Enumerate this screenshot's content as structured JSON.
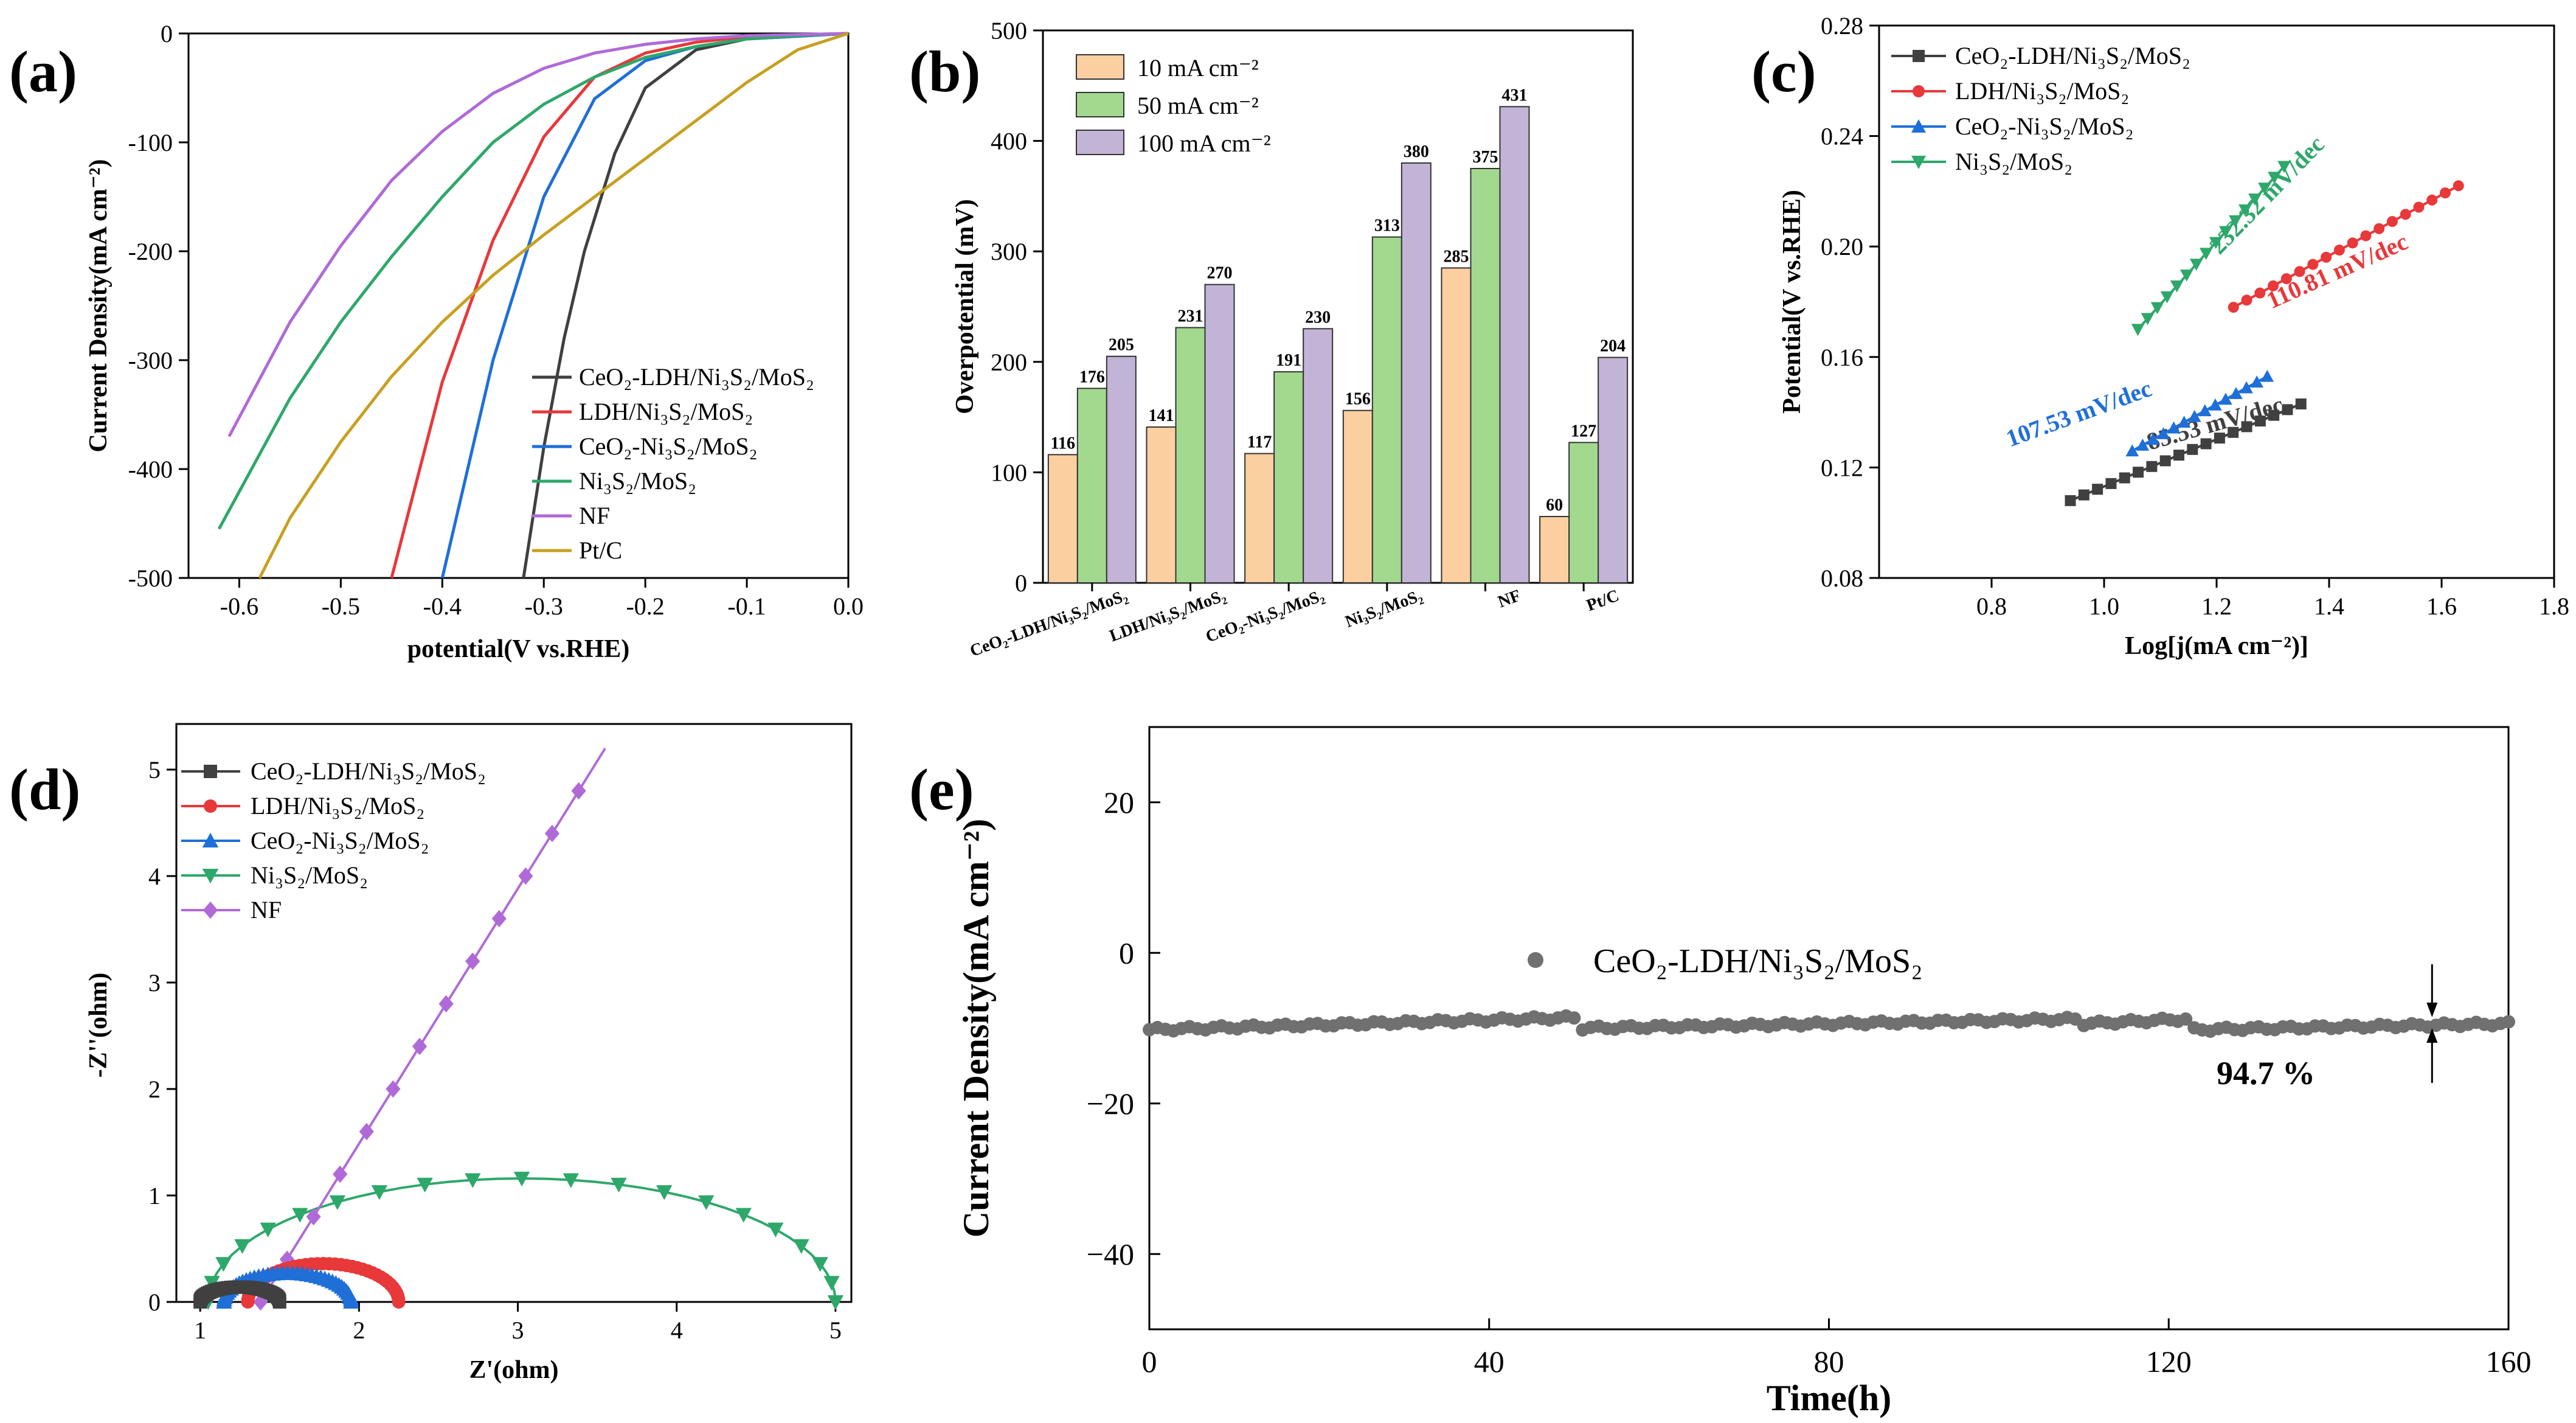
{
  "panels": [
    "(a)",
    "(b)",
    "(c)",
    "(d)",
    "(e)"
  ],
  "colors": {
    "dark": "#404040",
    "red": "#e8383a",
    "blue": "#1f6fd8",
    "green": "#2ea86a",
    "purple": "#b06ad8",
    "gold": "#c8a020",
    "bar10": "#fbcf9f",
    "bar50": "#a3d98f",
    "bar100": "#c2b4d6"
  },
  "chart_data": [
    {
      "id": "a",
      "type": "line",
      "title": "",
      "xlabel": "potential(V vs.RHE)",
      "ylabel": "Current Density(mA cm⁻²)",
      "xlim": [
        -0.65,
        0.0
      ],
      "ylim": [
        -500,
        0
      ],
      "xticks": [
        "-0.6",
        "-0.5",
        "-0.4",
        "-0.3",
        "-0.2",
        "-0.1",
        "0.0"
      ],
      "yticks": [
        "0",
        "-100",
        "-200",
        "-300",
        "-400",
        "-500"
      ],
      "legend": "bottom-right",
      "series": [
        {
          "name": "CeO₂-LDH/Ni₃S₂/MoS₂",
          "color": "#404040",
          "x": [
            0,
            -0.1,
            -0.15,
            -0.2,
            -0.23,
            -0.26,
            -0.28,
            -0.3,
            -0.31,
            -0.32
          ],
          "y": [
            0,
            -5,
            -15,
            -50,
            -110,
            -200,
            -280,
            -380,
            -440,
            -500
          ]
        },
        {
          "name": "LDH/Ni₃S₂/MoS₂",
          "color": "#e8383a",
          "x": [
            0,
            -0.1,
            -0.15,
            -0.2,
            -0.25,
            -0.3,
            -0.35,
            -0.4,
            -0.45
          ],
          "y": [
            0,
            -3,
            -8,
            -18,
            -40,
            -95,
            -190,
            -320,
            -500
          ]
        },
        {
          "name": "CeO₂-Ni₃S₂/MoS₂",
          "color": "#1f6fd8",
          "x": [
            0,
            -0.1,
            -0.15,
            -0.2,
            -0.25,
            -0.3,
            -0.35,
            -0.4
          ],
          "y": [
            0,
            -5,
            -12,
            -25,
            -60,
            -150,
            -300,
            -500
          ]
        },
        {
          "name": "Ni₃S₂/MoS₂",
          "color": "#2ea86a",
          "x": [
            0,
            -0.05,
            -0.1,
            -0.15,
            -0.2,
            -0.25,
            -0.3,
            -0.35,
            -0.4,
            -0.45,
            -0.5,
            -0.55,
            -0.62
          ],
          "y": [
            0,
            -2,
            -5,
            -12,
            -22,
            -40,
            -65,
            -100,
            -150,
            -205,
            -265,
            -335,
            -455
          ]
        },
        {
          "name": "NF",
          "color": "#b06ad8",
          "x": [
            0,
            -0.1,
            -0.15,
            -0.2,
            -0.25,
            -0.3,
            -0.35,
            -0.4,
            -0.45,
            -0.5,
            -0.55,
            -0.61
          ],
          "y": [
            0,
            -2,
            -5,
            -10,
            -18,
            -32,
            -55,
            -90,
            -135,
            -195,
            -265,
            -370
          ]
        },
        {
          "name": "NF",
          "color": "#b06ad8",
          "x": [],
          "y": []
        },
        {
          "name": "Pt/C",
          "color": "#c8a020",
          "x": [
            0,
            -0.05,
            -0.1,
            -0.15,
            -0.2,
            -0.25,
            -0.3,
            -0.35,
            -0.4,
            -0.45,
            -0.5,
            -0.55,
            -0.58
          ],
          "y": [
            0,
            -15,
            -45,
            -80,
            -115,
            -150,
            -185,
            -222,
            -265,
            -315,
            -375,
            -445,
            -500
          ]
        }
      ],
      "legend_entries": [
        "CeO₂-LDH/Ni₃S₂/MoS₂",
        "LDH/Ni₃S₂/MoS₂",
        "CeO₂-Ni₃S₂/MoS₂",
        "Ni₃S₂/MoS₂",
        "NF",
        "Pt/C"
      ]
    },
    {
      "id": "b",
      "type": "bar",
      "ylabel": "Overpotential (mV)",
      "ylim": [
        0,
        500
      ],
      "yticks": [
        "0",
        "100",
        "200",
        "300",
        "400",
        "500"
      ],
      "categories": [
        "CeO₂-LDH/Ni₃S₂/MoS₂",
        "LDH/Ni₃S₂/MoS₂",
        "CeO₂-Ni₃S₂/MoS₂",
        "Ni₃S₂/MoS₂",
        "NF",
        "Pt/C"
      ],
      "legend": "top-left",
      "series": [
        {
          "name": "10 mA cm⁻²",
          "color": "#fbcf9f",
          "values": [
            116,
            141,
            117,
            156,
            285,
            60
          ]
        },
        {
          "name": "50 mA cm⁻²",
          "color": "#a3d98f",
          "values": [
            176,
            231,
            191,
            313,
            375,
            127
          ]
        },
        {
          "name": "100 mA cm⁻²",
          "color": "#c2b4d6",
          "values": [
            205,
            270,
            230,
            380,
            431,
            204
          ]
        }
      ],
      "value_labels": [
        [
          "116",
          "176",
          "205"
        ],
        [
          "141",
          "231",
          "270"
        ],
        [
          "117",
          "191",
          "230"
        ],
        [
          "156",
          "313",
          "380"
        ],
        [
          "285",
          "375",
          "431"
        ],
        [
          "60",
          "127",
          "204"
        ]
      ]
    },
    {
      "id": "c",
      "type": "scatter",
      "xlabel": "Log[j(mA cm⁻²)]",
      "ylabel": "Potential(V vs.RHE)",
      "xlim": [
        0.6,
        1.8
      ],
      "ylim": [
        0.08,
        0.28
      ],
      "xticks": [
        "0.8",
        "1.0",
        "1.2",
        "1.4",
        "1.6",
        "1.8"
      ],
      "yticks": [
        "0.08",
        "0.12",
        "0.16",
        "0.20",
        "0.24",
        "0.28"
      ],
      "legend": "top-left",
      "series": [
        {
          "name": "CeO₂-LDH/Ni₃S₂/MoS₂",
          "color": "#404040",
          "marker": "square",
          "x_range": [
            0.94,
            1.35
          ],
          "y_range": [
            0.108,
            0.143
          ],
          "n": 18,
          "slope_label": "85.53 mV/dec"
        },
        {
          "name": "LDH/Ni₃S₂/MoS₂",
          "color": "#e8383a",
          "marker": "circle",
          "x_range": [
            1.23,
            1.63
          ],
          "y_range": [
            0.178,
            0.222
          ],
          "n": 18,
          "slope_label": "110.81 mV/dec"
        },
        {
          "name": "CeO₂-Ni₃S₂/MoS₂",
          "color": "#1f6fd8",
          "marker": "triangle-up",
          "x_range": [
            1.05,
            1.29
          ],
          "y_range": [
            0.126,
            0.153
          ],
          "n": 14,
          "slope_label": "107.53 mV/dec"
        },
        {
          "name": "Ni₃S₂/MoS₂",
          "color": "#2ea86a",
          "marker": "triangle-down",
          "x_range": [
            1.06,
            1.32
          ],
          "y_range": [
            0.17,
            0.229
          ],
          "n": 16,
          "slope_label": "232.32 mV/dec"
        }
      ]
    },
    {
      "id": "d",
      "type": "scatter",
      "xlabel": "Z'(ohm)",
      "ylabel": "-Z''(ohm)",
      "xlim": [
        0.85,
        5.1
      ],
      "ylim": [
        0,
        5.2
      ],
      "xticks": [
        "1",
        "2",
        "3",
        "4",
        "5"
      ],
      "yticks": [
        "0",
        "1",
        "2",
        "3",
        "4",
        "5"
      ],
      "legend": "top-left",
      "series": [
        {
          "name": "CeO₂-LDH/Ni₃S₂/MoS₂",
          "color": "#404040",
          "marker": "square",
          "arc": {
            "x0": 1.0,
            "x1": 1.5,
            "h": 0.14
          }
        },
        {
          "name": "LDH/Ni₃S₂/MoS₂",
          "color": "#e8383a",
          "marker": "circle",
          "arc": {
            "x0": 1.3,
            "x1": 2.25,
            "h": 0.36
          }
        },
        {
          "name": "CeO₂-Ni₃S₂/MoS₂",
          "color": "#1f6fd8",
          "marker": "triangle-up",
          "arc": {
            "x0": 1.15,
            "x1": 1.95,
            "h": 0.27
          }
        },
        {
          "name": "Ni₃S₂/MoS₂",
          "color": "#2ea86a",
          "marker": "triangle-down",
          "arc": {
            "x0": 1.05,
            "x1": 5.0,
            "h": 1.16
          }
        },
        {
          "name": "NF",
          "color": "#b06ad8",
          "marker": "diamond",
          "line": {
            "x0": 1.38,
            "x1": 3.55,
            "y0": 0.0,
            "y1": 5.2
          }
        }
      ]
    },
    {
      "id": "e",
      "type": "scatter",
      "xlabel": "Time(h)",
      "ylabel": "Current Density(mA cm⁻²)",
      "xlim": [
        0,
        160
      ],
      "ylim": [
        -50,
        30
      ],
      "xticks": [
        "0",
        "40",
        "80",
        "120",
        "160"
      ],
      "yticks": [
        "20",
        "0",
        "−20",
        "−40"
      ],
      "legend": "upper-middle",
      "series": [
        {
          "name": "CeO₂-LDH/Ni₃S₂/MoS₂",
          "color": "#707070",
          "marker": "circle",
          "segments": [
            {
              "t0": 0,
              "t1": 50,
              "y0": -10.2,
              "y1": -8.6
            },
            {
              "t0": 51,
              "t1": 109,
              "y0": -10.0,
              "y1": -8.8
            },
            {
              "t0": 110,
              "t1": 122,
              "y0": -9.4,
              "y1": -8.8
            },
            {
              "t0": 123,
              "t1": 160,
              "y0": -10.2,
              "y1": -9.4
            }
          ]
        }
      ],
      "annotation": "94.7 %"
    }
  ]
}
